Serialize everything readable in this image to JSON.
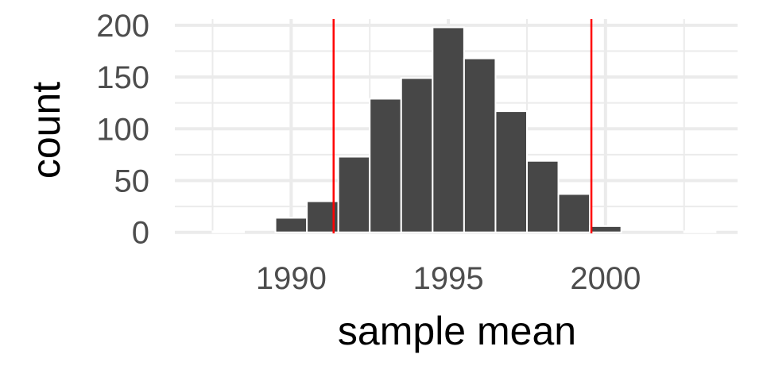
{
  "chart_data": {
    "type": "bar",
    "subtype": "histogram",
    "xlabel": "sample mean",
    "ylabel": "count",
    "xlim": [
      1986.3,
      2004.2
    ],
    "ylim": [
      -1,
      206
    ],
    "x_ticks": [
      1990,
      1995,
      2000
    ],
    "x_minor_ticks": [
      1987.5,
      1992.5,
      1997.5,
      2002.5
    ],
    "y_ticks": [
      0,
      50,
      100,
      150,
      200
    ],
    "y_minor_ticks": [
      25,
      75,
      125,
      175
    ],
    "bin_width": 1,
    "bins": [
      {
        "x": 1987,
        "count": 0
      },
      {
        "x": 1988,
        "count": 1
      },
      {
        "x": 1989,
        "count": 0
      },
      {
        "x": 1990,
        "count": 14
      },
      {
        "x": 1991,
        "count": 30
      },
      {
        "x": 1992,
        "count": 73
      },
      {
        "x": 1993,
        "count": 129
      },
      {
        "x": 1994,
        "count": 149
      },
      {
        "x": 1995,
        "count": 198
      },
      {
        "x": 1996,
        "count": 168
      },
      {
        "x": 1997,
        "count": 117
      },
      {
        "x": 1998,
        "count": 69
      },
      {
        "x": 1999,
        "count": 37
      },
      {
        "x": 2000,
        "count": 6
      },
      {
        "x": 2001,
        "count": 0
      },
      {
        "x": 2002,
        "count": 0
      },
      {
        "x": 2003,
        "count": 1
      }
    ],
    "reference_lines": [
      {
        "x": 1991.35,
        "color": "#ff0000"
      },
      {
        "x": 1999.55,
        "color": "#ff0000"
      }
    ],
    "bar_fill": "#474747",
    "bar_outline": "#ffffff",
    "grid": true,
    "grid_color": "#ebebeb"
  }
}
